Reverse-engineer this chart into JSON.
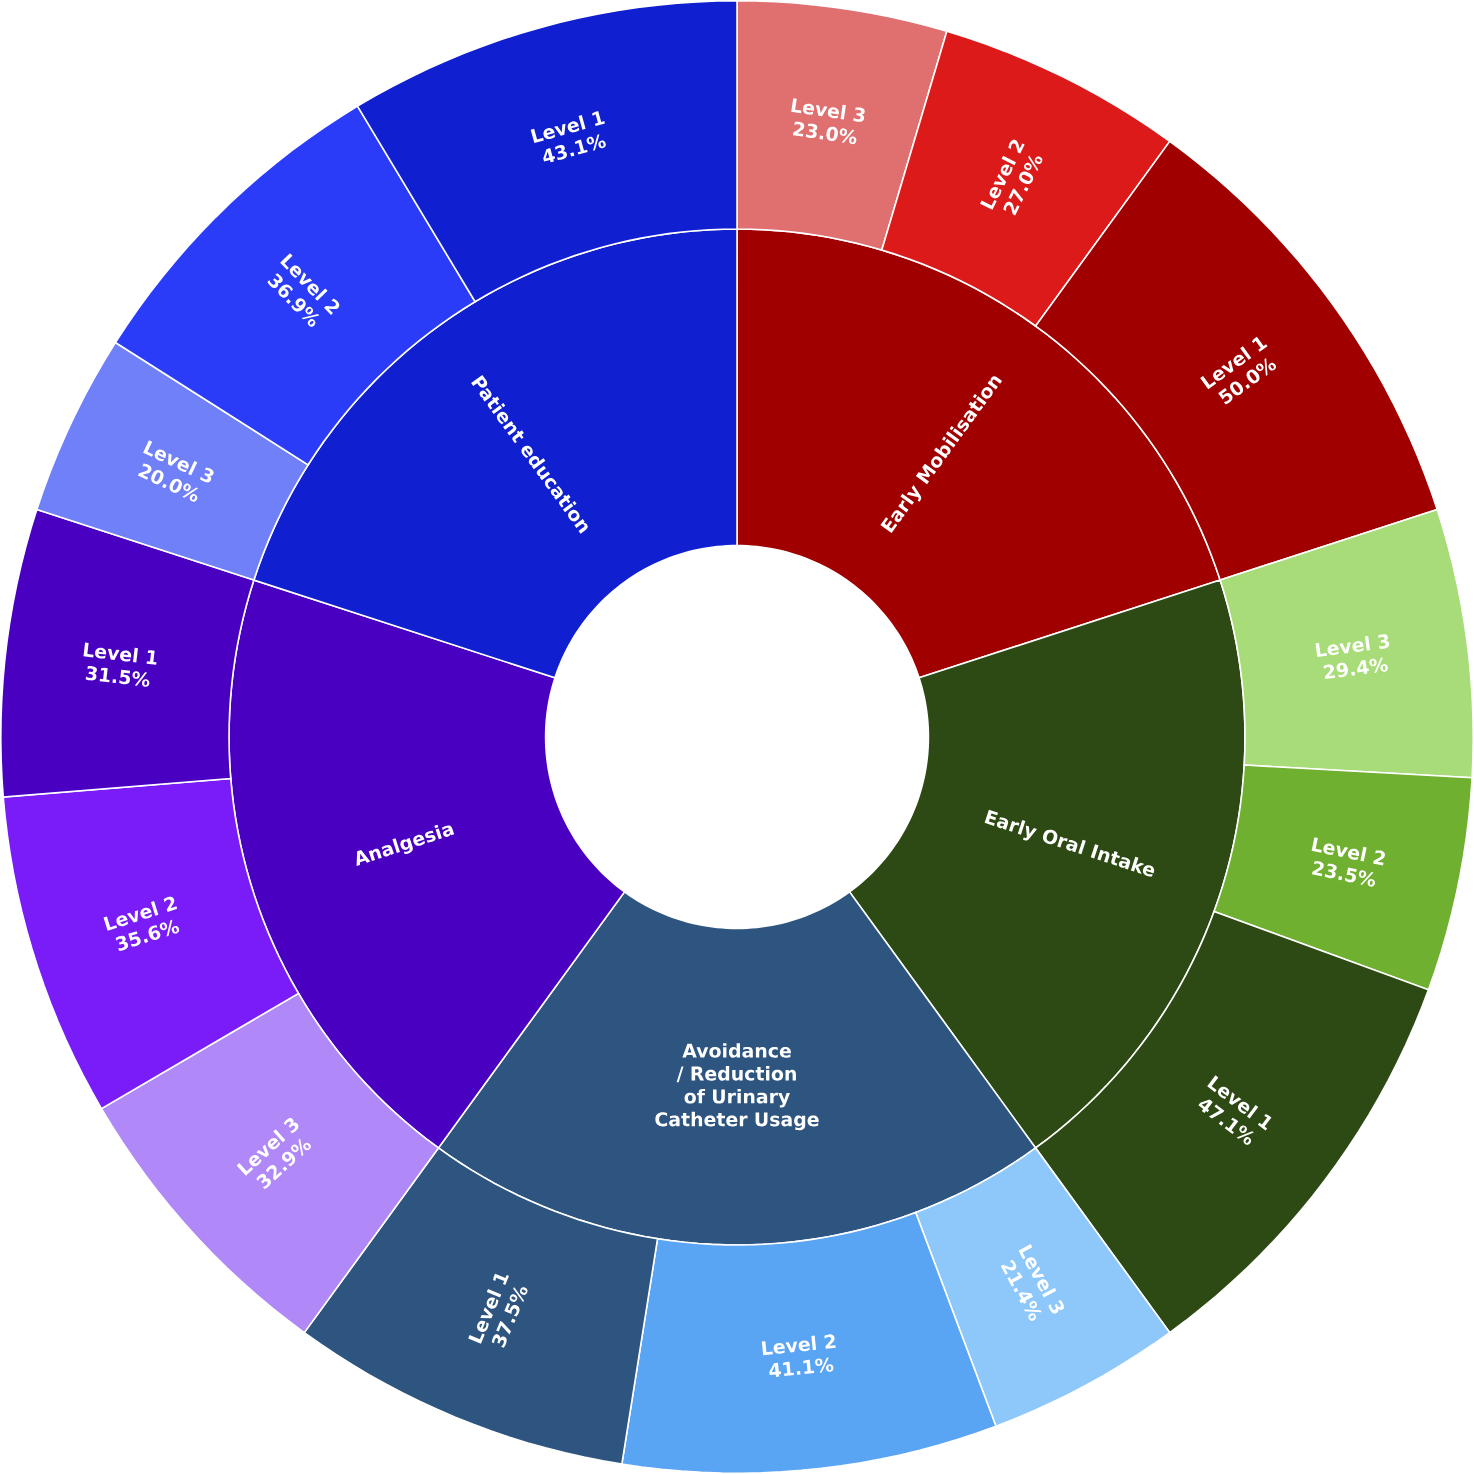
{
  "chart_data": {
    "type": "other",
    "categories": [
      "Early Mobilisation",
      "Early Oral Intake",
      "Avoidance / Reduction of Urinary Catheter Usage",
      "Analgesia",
      "Patient education"
    ],
    "colors": [
      "#a00000",
      "#2d4a14",
      "#2e5580",
      "#4a00c0",
      "#1020d0"
    ],
    "series": [
      {
        "name": "Level 3",
        "values": [
          23.0,
          29.4,
          21.4,
          32.9,
          20.0
        ],
        "value_labels": [
          "23.0%",
          "29.4%",
          "21.4%",
          "32.9%",
          "20.0%"
        ],
        "colors": [
          "#e07070",
          "#a8dc78",
          "#8ec8fa",
          "#b088f8",
          "#7080f8"
        ]
      },
      {
        "name": "Level 2",
        "values": [
          27.0,
          23.5,
          41.1,
          35.6,
          36.9
        ],
        "value_labels": [
          "27.0%",
          "23.5%",
          "41.1%",
          "35.6%",
          "36.9%"
        ],
        "colors": [
          "#dc1a1a",
          "#70b030",
          "#5aa4f4",
          "#7a1cf8",
          "#2a3cf8"
        ]
      },
      {
        "name": "Level 1",
        "values": [
          50.0,
          47.1,
          37.5,
          31.5,
          43.1
        ],
        "value_labels": [
          "50.0%",
          "47.1%",
          "37.5%",
          "31.5%",
          "43.1%"
        ],
        "colors": [
          "#a00000",
          "#2d4a14",
          "#2e5580",
          "#4a00c0",
          "#1020d0"
        ]
      }
    ]
  }
}
